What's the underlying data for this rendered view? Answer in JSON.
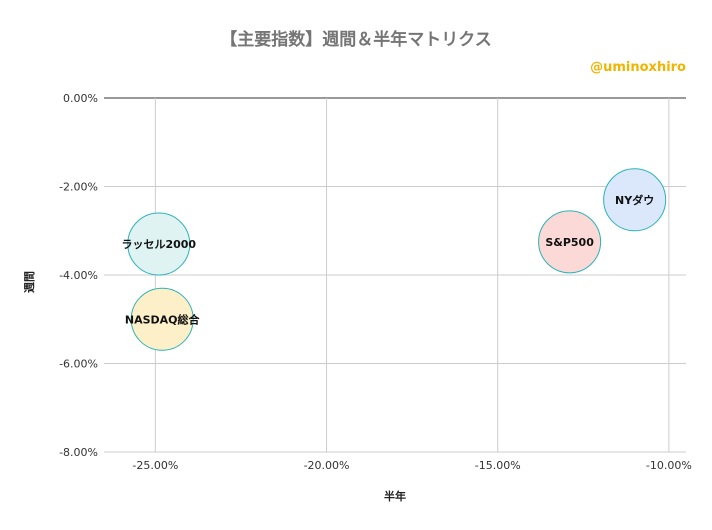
{
  "chart_data": {
    "type": "bubble",
    "title": "【主要指数】週間＆半年マトリクス",
    "credit": "@uminoxhiro",
    "xlabel": "半年",
    "ylabel": "週間",
    "xlim": [
      -26.5,
      -9.5
    ],
    "ylim": [
      -8,
      0
    ],
    "x_ticks": [
      -25,
      -20,
      -15,
      -10
    ],
    "x_tick_labels": [
      "-25.00%",
      "-20.00%",
      "-15.00%",
      "-10.00%"
    ],
    "y_ticks": [
      0,
      -2,
      -4,
      -6,
      -8
    ],
    "y_tick_labels": [
      "0.00%",
      "-2.00%",
      "-4.00%",
      "-6.00%",
      "-8.00%"
    ],
    "grid": true,
    "points": [
      {
        "label": "NYダウ",
        "x": -11.0,
        "y": -2.3,
        "color": "#dbe7fb"
      },
      {
        "label": "S&P500",
        "x": -12.9,
        "y": -3.25,
        "color": "#fad9d7"
      },
      {
        "label": "ラッセル2000",
        "x": -24.9,
        "y": -3.3,
        "color": "#dff3f3"
      },
      {
        "label": "NASDAQ総合",
        "x": -24.8,
        "y": -5.0,
        "color": "#fdf0c8"
      }
    ],
    "bubble_stroke": "#2bb3b8"
  }
}
